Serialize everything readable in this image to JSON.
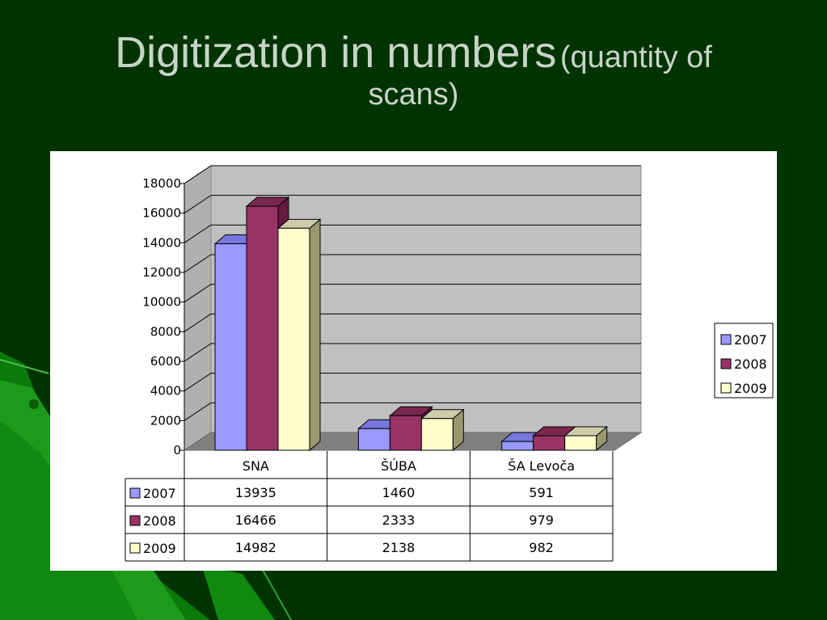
{
  "slide": {
    "title": "Digitization in numbers",
    "subtitle_line1": "(quantity of",
    "subtitle_line2": "scans)"
  },
  "chart_data": {
    "type": "bar",
    "categories": [
      "SNA",
      "ŠÚBA",
      "ŠA Levoča"
    ],
    "series": [
      {
        "name": "2007",
        "values": [
          13935,
          1460,
          591
        ],
        "color": "#9999ff",
        "side": "#6666cc",
        "top": "#7777dd"
      },
      {
        "name": "2008",
        "values": [
          16466,
          2333,
          979
        ],
        "color": "#993366",
        "side": "#661a40",
        "top": "#7a2850"
      },
      {
        "name": "2009",
        "values": [
          14982,
          2138,
          982
        ],
        "color": "#ffffcc",
        "side": "#999970",
        "top": "#ccccaa"
      }
    ],
    "yticks": [
      0,
      2000,
      4000,
      6000,
      8000,
      10000,
      12000,
      14000,
      16000,
      18000
    ],
    "ylim": [
      0,
      18000
    ],
    "grid": true,
    "legend": "right",
    "data_table": true
  }
}
